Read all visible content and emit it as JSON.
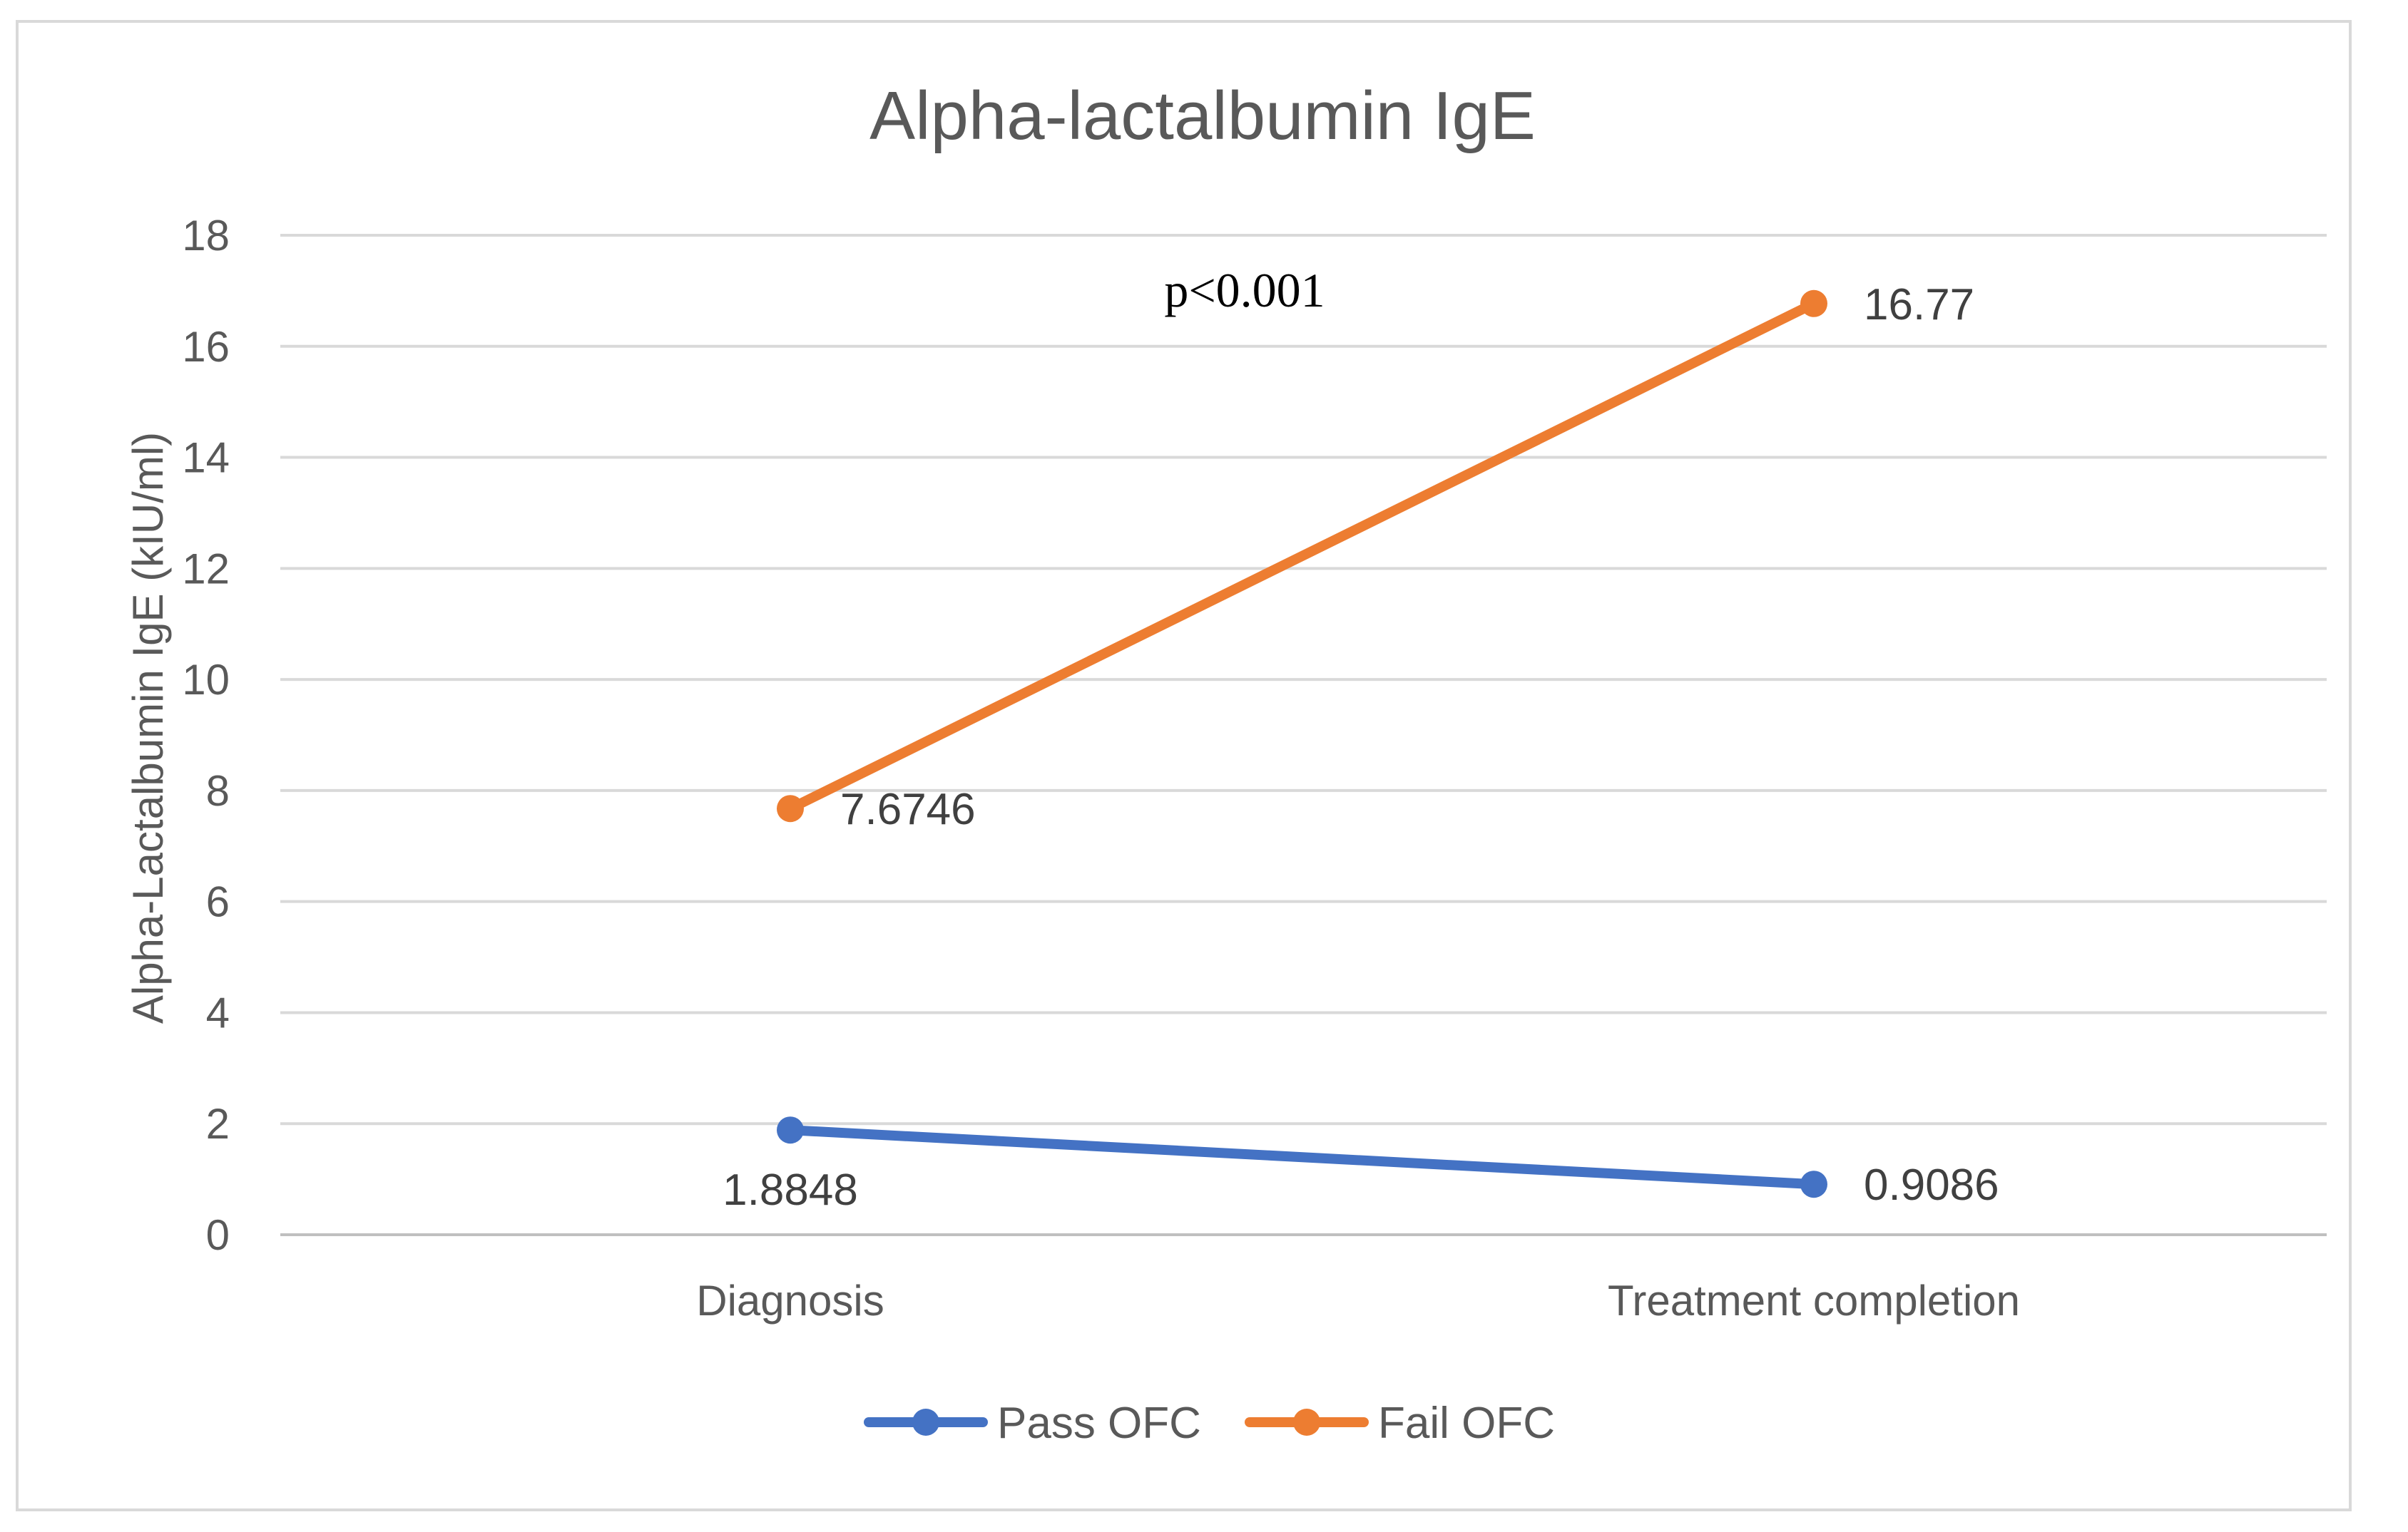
{
  "chart_data": {
    "type": "line",
    "title": "Alpha-lactalbumin IgE",
    "xlabel": "",
    "ylabel": "Alpha-Lactalbumin IgE (kIU/ml)",
    "categories": [
      "Diagnosis",
      "Treatment completion"
    ],
    "ylim": [
      0,
      18
    ],
    "yticks": [
      0,
      2,
      4,
      6,
      8,
      10,
      12,
      14,
      16,
      18
    ],
    "grid": true,
    "legend_position": "bottom",
    "annotation": "p<0.001",
    "series": [
      {
        "name": "Pass OFC",
        "color": "#4472c4",
        "values": [
          1.8848,
          0.9086
        ],
        "labels": [
          "1.8848",
          "0.9086"
        ]
      },
      {
        "name": "Fail OFC",
        "color": "#ed7d31",
        "values": [
          7.6746,
          16.77
        ],
        "labels": [
          "7.6746",
          "16.77"
        ]
      }
    ]
  }
}
